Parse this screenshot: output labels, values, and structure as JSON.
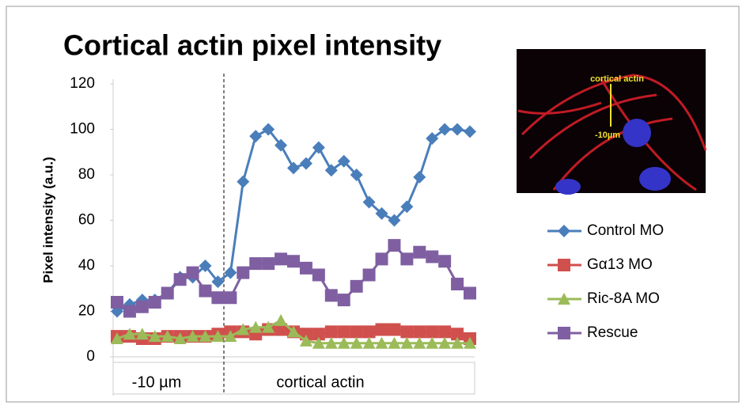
{
  "chart_data": {
    "type": "line",
    "title": "Cortical actin pixel intensity",
    "y_label": "Pixel intensity (a.u.)",
    "categories": [
      null,
      null,
      null,
      null,
      null,
      null,
      null,
      null,
      null,
      null,
      null,
      null,
      null,
      null,
      null,
      null,
      null,
      null,
      null,
      null,
      null,
      null,
      null,
      null,
      null,
      null,
      null,
      null,
      null
    ],
    "x_groups": [
      "-10 µm",
      "cortical actin"
    ],
    "ylim": [
      0,
      120
    ],
    "yticks": [
      0,
      20,
      40,
      60,
      80,
      100,
      120
    ],
    "grid": false,
    "legend": "right",
    "series": [
      {
        "name": "Control MO",
        "color": "#4a7ebb",
        "marker": "diamond",
        "values": [
          20,
          23,
          25,
          25,
          28,
          35,
          35,
          40,
          33,
          37,
          77,
          97,
          100,
          93,
          83,
          85,
          92,
          82,
          86,
          80,
          68,
          63,
          60,
          66,
          79,
          96,
          100,
          100,
          99
        ]
      },
      {
        "name": "Gα13 MO",
        "color": "#d0504d",
        "marker": "square",
        "values": [
          9,
          9,
          8,
          8,
          9,
          9,
          9,
          9,
          10,
          11,
          11,
          10,
          12,
          12,
          11,
          10,
          10,
          11,
          11,
          11,
          11,
          12,
          12,
          11,
          11,
          11,
          11,
          10,
          8
        ]
      },
      {
        "name": "Ric-8A MO",
        "color": "#9bbb59",
        "marker": "triangle",
        "values": [
          8,
          10,
          10,
          9,
          9,
          8,
          9,
          9,
          9,
          9,
          12,
          13,
          13,
          16,
          11,
          7,
          6,
          6,
          6,
          6,
          6,
          6,
          6,
          6,
          6,
          6,
          6,
          6,
          6
        ]
      },
      {
        "name": "Rescue",
        "color": "#7f5fa1",
        "marker": "square",
        "values": [
          24,
          20,
          22,
          24,
          28,
          34,
          37,
          29,
          26,
          26,
          37,
          41,
          41,
          43,
          42,
          39,
          36,
          27,
          25,
          31,
          36,
          43,
          49,
          43,
          46,
          44,
          42,
          32,
          28
        ]
      }
    ]
  },
  "inset_labels": [
    "cortical actin",
    "-10µm"
  ]
}
